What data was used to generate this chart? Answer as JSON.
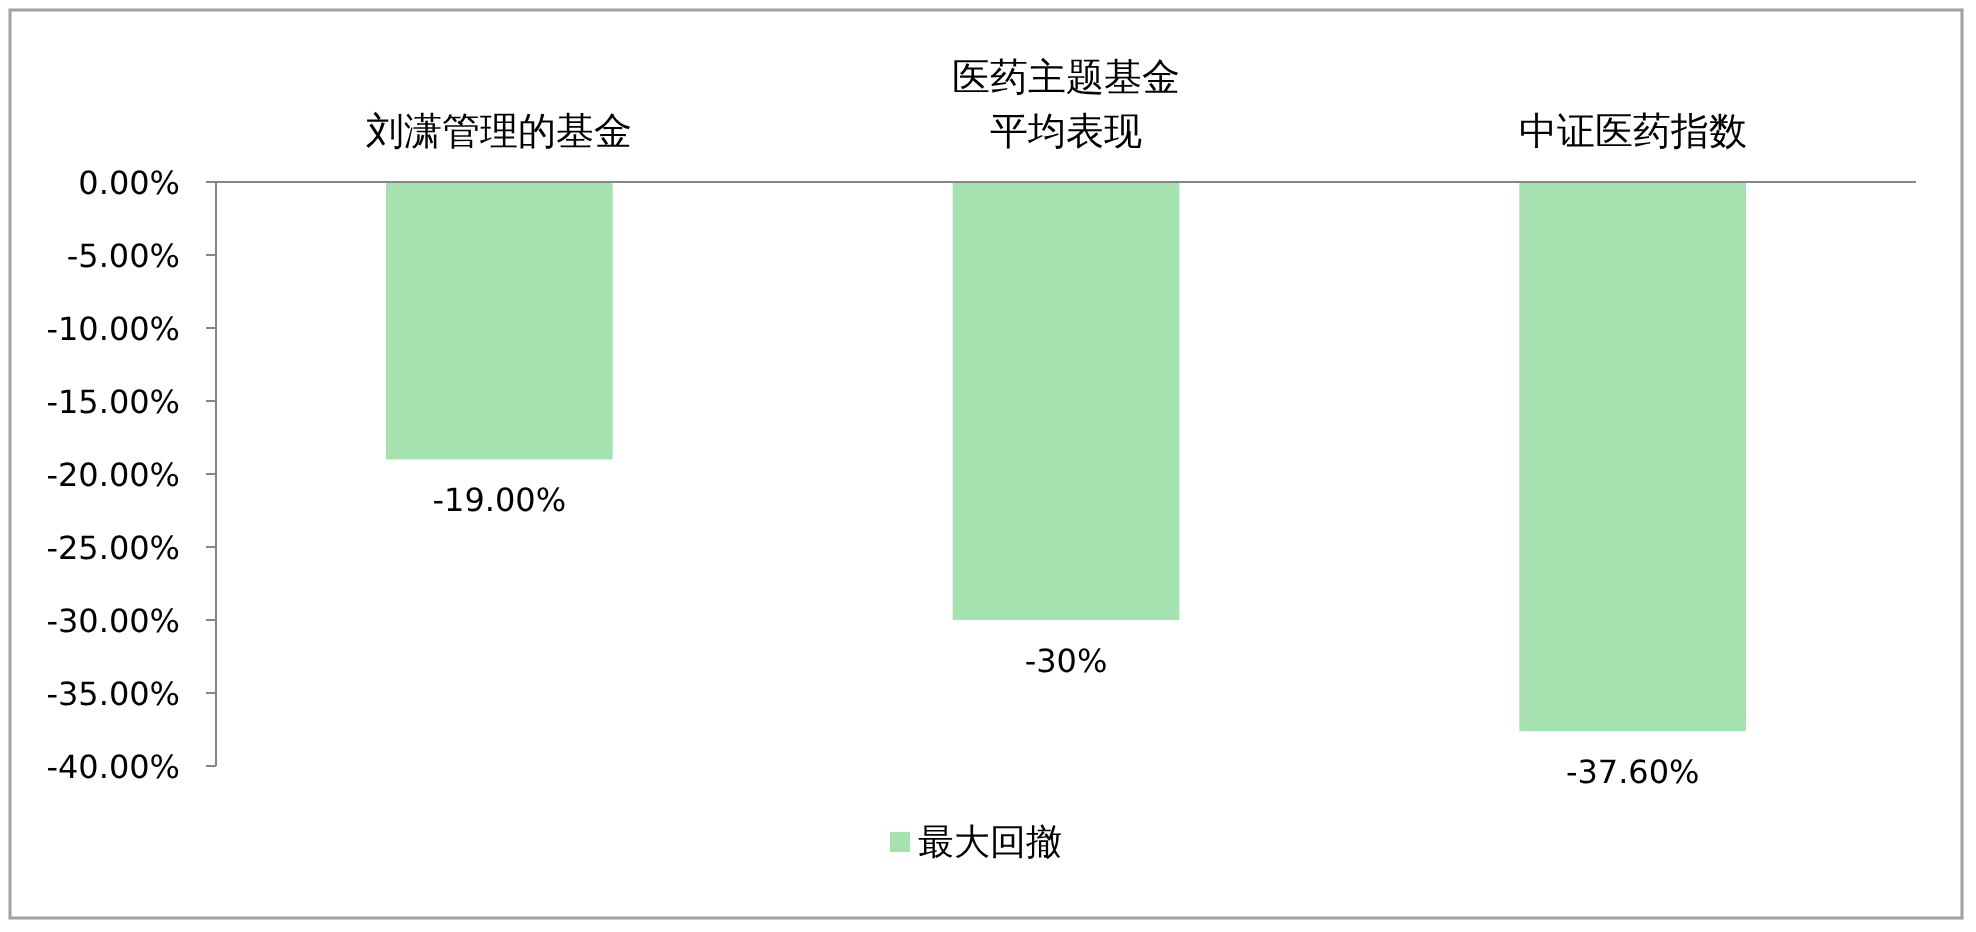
{
  "chart_data": {
    "type": "bar",
    "categories": [
      "刘潇管理的基金",
      "医药主题基金平均表现",
      "中证医药指数"
    ],
    "series": [
      {
        "name": "最大回撤",
        "color": "#a6e2b0",
        "values": [
          -19,
          -30,
          -37.6
        ],
        "value_labels": [
          "-19.00%",
          "-30%",
          "-37.60%"
        ]
      }
    ],
    "ylim": [
      -40,
      0
    ],
    "yticks": [
      {
        "value": 0,
        "label": "0.00%"
      },
      {
        "value": -5,
        "label": "-5.00%"
      },
      {
        "value": -10,
        "label": "-10.00%"
      },
      {
        "value": -15,
        "label": "-15.00%"
      },
      {
        "value": -20,
        "label": "-20.00%"
      },
      {
        "value": -25,
        "label": "-25.00%"
      },
      {
        "value": -30,
        "label": "-30.00%"
      },
      {
        "value": -35,
        "label": "-35.00%"
      },
      {
        "value": -40,
        "label": "-40.00%"
      }
    ],
    "grid": false,
    "legend": "bottom"
  }
}
